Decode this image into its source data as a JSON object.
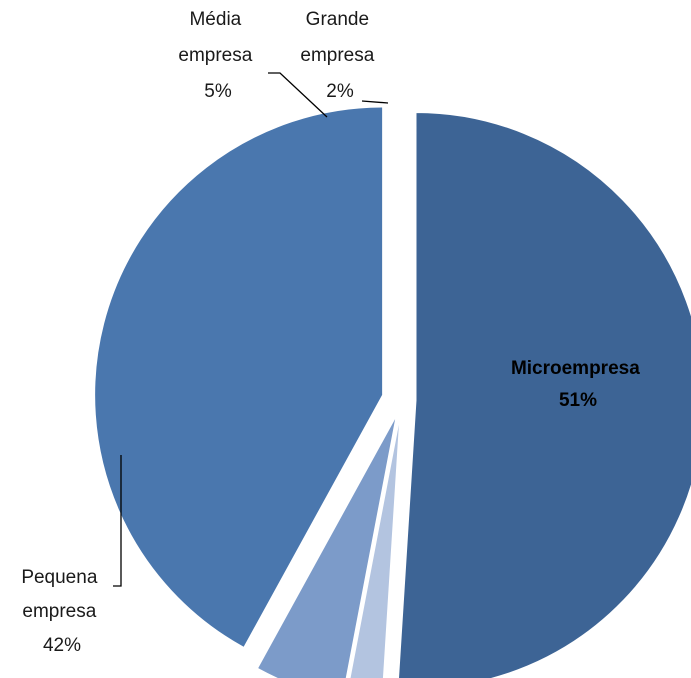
{
  "chart_data": {
    "type": "pie",
    "slices": [
      {
        "label_lines": [
          "Microempresa"
        ],
        "percent_text": "51%",
        "value": 51,
        "color": "#3D6495"
      },
      {
        "label_lines": [
          "Grande",
          "empresa"
        ],
        "percent_text": "2%",
        "value": 2,
        "color": "#B3C4E0"
      },
      {
        "label_lines": [
          "Média",
          "empresa"
        ],
        "percent_text": "5%",
        "value": 5,
        "color": "#7C9BC9"
      },
      {
        "label_lines": [
          "Pequena",
          "empresa"
        ],
        "percent_text": "42%",
        "value": 42,
        "color": "#4A77AE"
      }
    ],
    "exploded": true,
    "legend": "none",
    "title": ""
  }
}
